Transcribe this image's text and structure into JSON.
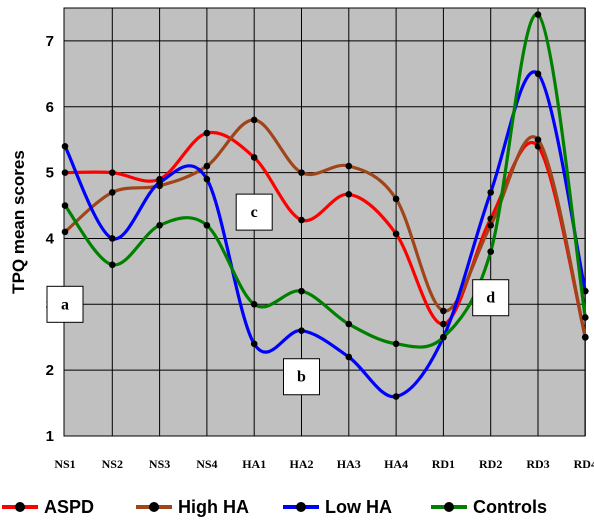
{
  "chart_data": {
    "type": "line",
    "title": "",
    "xlabel": "",
    "ylabel": "TPQ mean scores",
    "ylim": [
      1,
      7.5
    ],
    "yticks": [
      1,
      2,
      3,
      4,
      5,
      6,
      7
    ],
    "grid": true,
    "legend_position": "bottom",
    "categories": [
      "NS1",
      "NS2",
      "NS3",
      "NS4",
      "HA1",
      "HA2",
      "HA3",
      "HA4",
      "RD1",
      "RD2",
      "RD3",
      "RD4"
    ],
    "series": [
      {
        "name": "ASPD",
        "color": "#ff0000",
        "values": [
          5.0,
          5.0,
          4.9,
          5.6,
          5.23,
          4.28,
          4.67,
          4.07,
          2.7,
          4.3,
          5.4,
          2.5
        ]
      },
      {
        "name": "High HA",
        "color": "#a0451a",
        "values": [
          4.1,
          4.7,
          4.8,
          5.1,
          5.8,
          5.0,
          5.1,
          4.6,
          2.9,
          4.2,
          5.5,
          2.5
        ]
      },
      {
        "name": "Low HA",
        "color": "#0000ff",
        "values": [
          5.4,
          4.0,
          4.85,
          4.9,
          2.4,
          2.6,
          2.2,
          1.6,
          2.5,
          4.7,
          6.5,
          3.2
        ]
      },
      {
        "name": "Controls",
        "color": "#008000",
        "values": [
          4.5,
          3.6,
          4.2,
          4.2,
          3.0,
          3.2,
          2.7,
          2.4,
          2.5,
          3.8,
          7.4,
          2.8
        ]
      }
    ],
    "annotations": [
      {
        "label": "a",
        "x": "NS1",
        "y": 3.0
      },
      {
        "label": "b",
        "x": "HA2",
        "y": 1.9
      },
      {
        "label": "c",
        "x": "HA1",
        "y": 4.4
      },
      {
        "label": "d",
        "x": "RD2",
        "y": 3.1
      }
    ]
  }
}
